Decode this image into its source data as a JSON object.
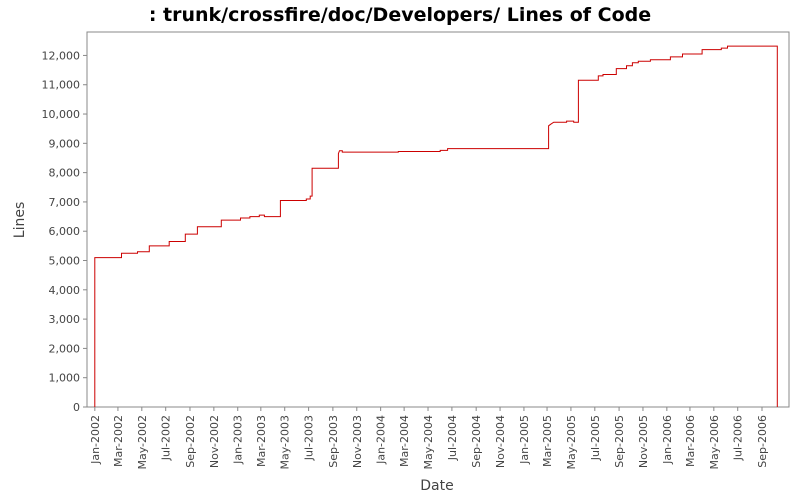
{
  "chart_data": {
    "type": "line",
    "title": ": trunk/crossfire/doc/Developers/ Lines of Code",
    "xlabel": "Date",
    "ylabel": "Lines",
    "ylim": [
      0,
      12800
    ],
    "xlim": [
      "2001-12-12",
      "2006-11-09"
    ],
    "grid": false,
    "line_color": "#cc0000",
    "y_ticks": [
      {
        "value": 0,
        "label": "0"
      },
      {
        "value": 1000,
        "label": "1,000"
      },
      {
        "value": 2000,
        "label": "2,000"
      },
      {
        "value": 3000,
        "label": "3,000"
      },
      {
        "value": 4000,
        "label": "4,000"
      },
      {
        "value": 5000,
        "label": "5,000"
      },
      {
        "value": 6000,
        "label": "6,000"
      },
      {
        "value": 7000,
        "label": "7,000"
      },
      {
        "value": 8000,
        "label": "8,000"
      },
      {
        "value": 9000,
        "label": "9,000"
      },
      {
        "value": 10000,
        "label": "10,000"
      },
      {
        "value": 11000,
        "label": "11,000"
      },
      {
        "value": 12000,
        "label": "12,000"
      }
    ],
    "x_ticks": [
      {
        "date": "2002-01-01",
        "label": "Jan-2002"
      },
      {
        "date": "2002-03-01",
        "label": "Mar-2002"
      },
      {
        "date": "2002-05-01",
        "label": "May-2002"
      },
      {
        "date": "2002-07-01",
        "label": "Jul-2002"
      },
      {
        "date": "2002-09-01",
        "label": "Sep-2002"
      },
      {
        "date": "2002-11-01",
        "label": "Nov-2002"
      },
      {
        "date": "2003-01-01",
        "label": "Jan-2003"
      },
      {
        "date": "2003-03-01",
        "label": "Mar-2003"
      },
      {
        "date": "2003-05-01",
        "label": "May-2003"
      },
      {
        "date": "2003-07-01",
        "label": "Jul-2003"
      },
      {
        "date": "2003-09-01",
        "label": "Sep-2003"
      },
      {
        "date": "2003-11-01",
        "label": "Nov-2003"
      },
      {
        "date": "2004-01-01",
        "label": "Jan-2004"
      },
      {
        "date": "2004-03-01",
        "label": "Mar-2004"
      },
      {
        "date": "2004-05-01",
        "label": "May-2004"
      },
      {
        "date": "2004-07-01",
        "label": "Jul-2004"
      },
      {
        "date": "2004-09-01",
        "label": "Sep-2004"
      },
      {
        "date": "2004-11-01",
        "label": "Nov-2004"
      },
      {
        "date": "2005-01-01",
        "label": "Jan-2005"
      },
      {
        "date": "2005-03-01",
        "label": "Mar-2005"
      },
      {
        "date": "2005-05-01",
        "label": "May-2005"
      },
      {
        "date": "2005-07-01",
        "label": "Jul-2005"
      },
      {
        "date": "2005-09-01",
        "label": "Sep-2005"
      },
      {
        "date": "2005-11-01",
        "label": "Nov-2005"
      },
      {
        "date": "2006-01-01",
        "label": "Jan-2006"
      },
      {
        "date": "2006-03-01",
        "label": "Mar-2006"
      },
      {
        "date": "2006-05-01",
        "label": "May-2006"
      },
      {
        "date": "2006-07-01",
        "label": "Jul-2006"
      },
      {
        "date": "2006-09-01",
        "label": "Sep-2006"
      }
    ],
    "series": [
      {
        "points": [
          [
            "2002-01-01",
            0
          ],
          [
            "2002-01-01",
            5100
          ],
          [
            "2002-03-10",
            5100
          ],
          [
            "2002-03-10",
            5250
          ],
          [
            "2002-04-20",
            5250
          ],
          [
            "2002-04-20",
            5300
          ],
          [
            "2002-05-20",
            5300
          ],
          [
            "2002-05-20",
            5500
          ],
          [
            "2002-07-10",
            5500
          ],
          [
            "2002-07-10",
            5650
          ],
          [
            "2002-08-20",
            5650
          ],
          [
            "2002-08-20",
            5900
          ],
          [
            "2002-09-20",
            5900
          ],
          [
            "2002-09-20",
            6150
          ],
          [
            "2002-11-20",
            6150
          ],
          [
            "2002-11-20",
            6380
          ],
          [
            "2003-01-08",
            6380
          ],
          [
            "2003-01-08",
            6450
          ],
          [
            "2003-02-01",
            6450
          ],
          [
            "2003-02-01",
            6500
          ],
          [
            "2003-02-25",
            6500
          ],
          [
            "2003-02-25",
            6550
          ],
          [
            "2003-03-10",
            6550
          ],
          [
            "2003-03-10",
            6500
          ],
          [
            "2003-04-20",
            6500
          ],
          [
            "2003-04-20",
            7050
          ],
          [
            "2003-06-25",
            7050
          ],
          [
            "2003-06-25",
            7100
          ],
          [
            "2003-07-05",
            7100
          ],
          [
            "2003-07-05",
            7200
          ],
          [
            "2003-07-10",
            7200
          ],
          [
            "2003-07-10",
            8150
          ],
          [
            "2003-09-15",
            8150
          ],
          [
            "2003-09-15",
            8650
          ],
          [
            "2003-09-18",
            8750
          ],
          [
            "2003-09-25",
            8750
          ],
          [
            "2003-09-25",
            8700
          ],
          [
            "2004-02-15",
            8700
          ],
          [
            "2004-02-15",
            8720
          ],
          [
            "2004-06-01",
            8720
          ],
          [
            "2004-06-01",
            8760
          ],
          [
            "2004-06-20",
            8760
          ],
          [
            "2004-06-20",
            8820
          ],
          [
            "2005-03-05",
            8820
          ],
          [
            "2005-03-05",
            9600
          ],
          [
            "2005-03-10",
            9650
          ],
          [
            "2005-03-18",
            9720
          ],
          [
            "2005-04-20",
            9720
          ],
          [
            "2005-04-20",
            9760
          ],
          [
            "2005-05-08",
            9760
          ],
          [
            "2005-05-08",
            9720
          ],
          [
            "2005-05-20",
            9720
          ],
          [
            "2005-05-20",
            11150
          ],
          [
            "2005-07-10",
            11150
          ],
          [
            "2005-07-10",
            11300
          ],
          [
            "2005-07-22",
            11300
          ],
          [
            "2005-07-22",
            11350
          ],
          [
            "2005-08-25",
            11350
          ],
          [
            "2005-08-25",
            11550
          ],
          [
            "2005-09-20",
            11550
          ],
          [
            "2005-09-20",
            11650
          ],
          [
            "2005-10-05",
            11650
          ],
          [
            "2005-10-05",
            11750
          ],
          [
            "2005-10-20",
            11750
          ],
          [
            "2005-10-20",
            11800
          ],
          [
            "2005-11-20",
            11800
          ],
          [
            "2005-11-20",
            11850
          ],
          [
            "2006-01-10",
            11850
          ],
          [
            "2006-01-10",
            11950
          ],
          [
            "2006-02-10",
            11950
          ],
          [
            "2006-02-10",
            12050
          ],
          [
            "2006-04-01",
            12050
          ],
          [
            "2006-04-01",
            12200
          ],
          [
            "2006-05-20",
            12200
          ],
          [
            "2006-05-20",
            12250
          ],
          [
            "2006-06-05",
            12250
          ],
          [
            "2006-06-05",
            12320
          ],
          [
            "2006-10-10",
            12320
          ],
          [
            "2006-10-10",
            0
          ]
        ]
      }
    ]
  }
}
